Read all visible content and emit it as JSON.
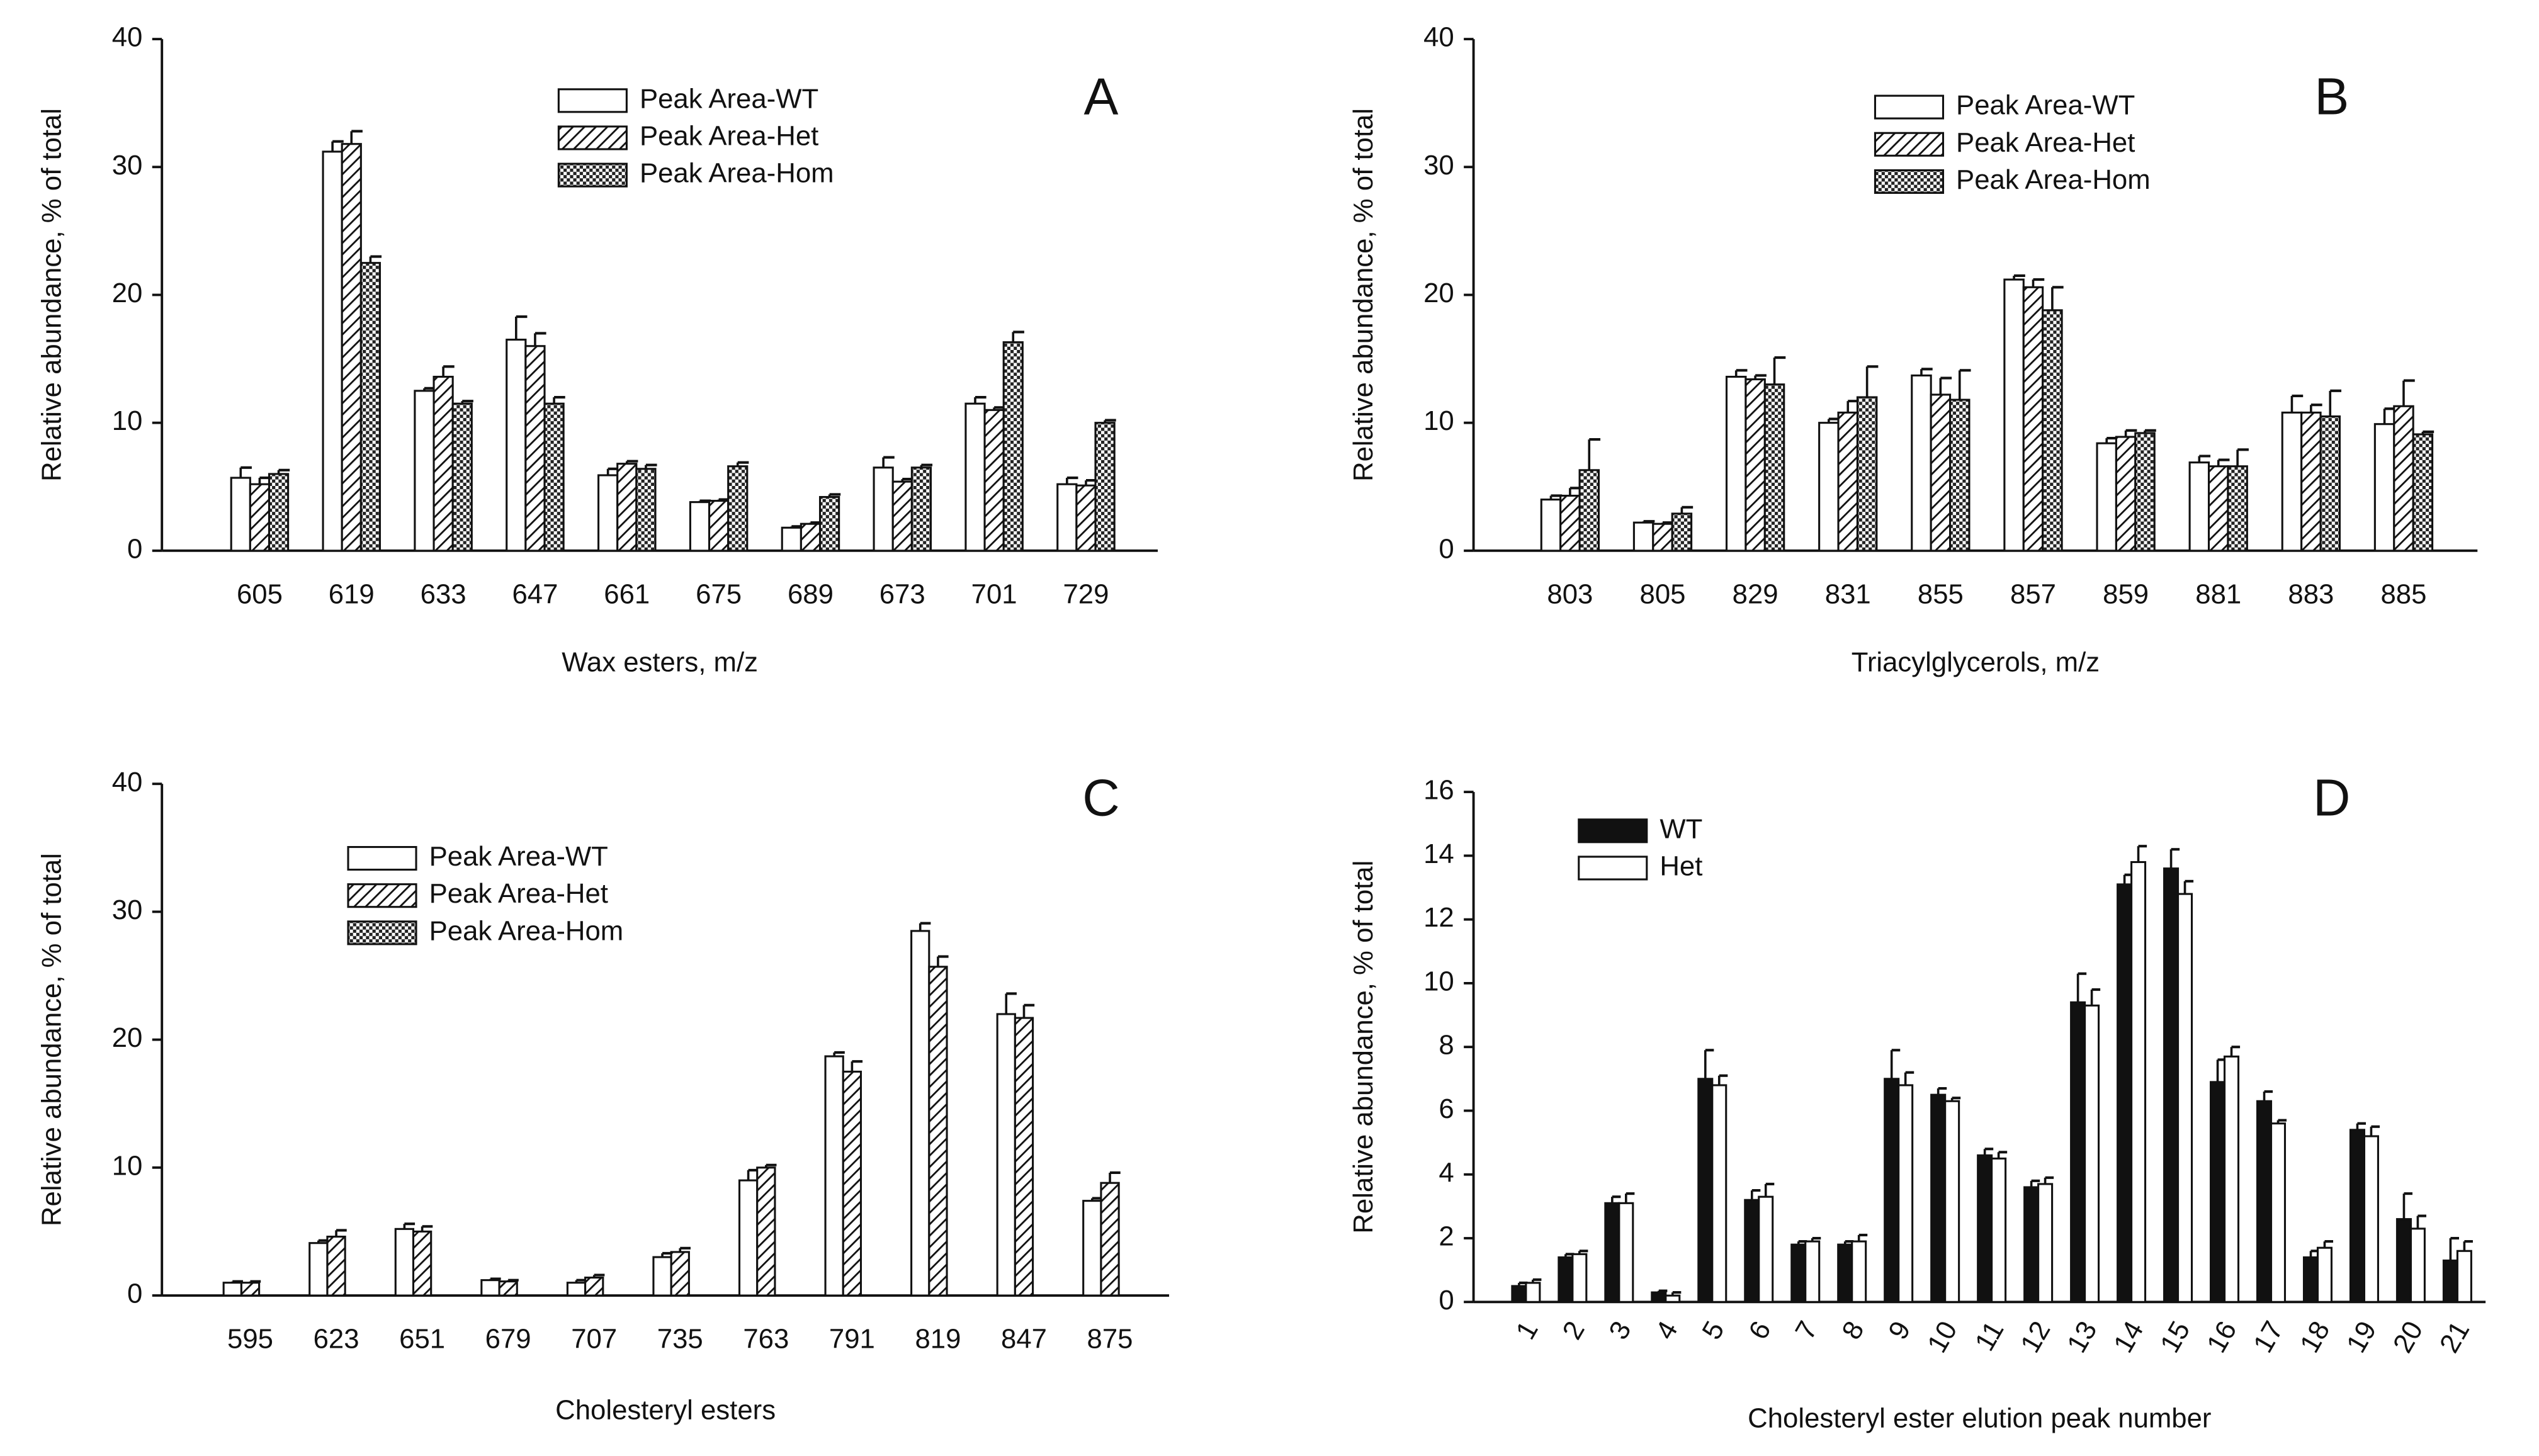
{
  "chart_data": [
    {
      "type": "bar",
      "label": "A",
      "xlabel": "Wax esters, m/z",
      "ylabel": "Relative abundance, % of total",
      "categories": [
        "605",
        "619",
        "633",
        "647",
        "661",
        "675",
        "689",
        "673",
        "701",
        "729"
      ],
      "ylim": [
        0,
        40
      ],
      "yticks": [
        0,
        10,
        20,
        30,
        40
      ],
      "series": [
        {
          "name": "Peak Area-WT",
          "color": "#ffffff",
          "pattern": "none",
          "values": [
            5.7,
            31.2,
            12.5,
            16.5,
            5.9,
            3.8,
            1.8,
            6.5,
            11.5,
            5.2
          ],
          "errors": [
            0.8,
            0.8,
            0.2,
            1.8,
            0.5,
            0.1,
            0.1,
            0.8,
            0.5,
            0.5
          ]
        },
        {
          "name": "Peak Area-Het",
          "color": "#ffffff",
          "pattern": "diagonal",
          "values": [
            5.2,
            31.8,
            13.6,
            16.0,
            6.8,
            3.9,
            2.1,
            5.4,
            11.0,
            5.1
          ],
          "errors": [
            0.5,
            1.0,
            0.8,
            1.0,
            0.2,
            0.1,
            0.1,
            0.2,
            0.2,
            0.4
          ]
        },
        {
          "name": "Peak Area-Hom",
          "color": "#ffffff",
          "pattern": "checker",
          "values": [
            6.0,
            22.5,
            11.5,
            11.5,
            6.4,
            6.6,
            4.2,
            6.5,
            16.3,
            10.0
          ],
          "errors": [
            0.3,
            0.5,
            0.2,
            0.5,
            0.3,
            0.3,
            0.2,
            0.2,
            0.8,
            0.2
          ]
        }
      ]
    },
    {
      "type": "bar",
      "label": "B",
      "xlabel": "Triacylglycerols, m/z",
      "ylabel": "Relative abundance, % of total",
      "categories": [
        "803",
        "805",
        "829",
        "831",
        "855",
        "857",
        "859",
        "881",
        "883",
        "885"
      ],
      "ylim": [
        0,
        40
      ],
      "yticks": [
        0,
        10,
        20,
        30,
        40
      ],
      "series": [
        {
          "name": "Peak Area-WT",
          "color": "#ffffff",
          "pattern": "none",
          "values": [
            4.0,
            2.2,
            13.6,
            10.0,
            13.7,
            21.2,
            8.4,
            6.9,
            10.8,
            9.9
          ],
          "errors": [
            0.3,
            0.1,
            0.5,
            0.3,
            0.5,
            0.3,
            0.4,
            0.5,
            1.3,
            1.2
          ]
        },
        {
          "name": "Peak Area-Het",
          "color": "#ffffff",
          "pattern": "diagonal",
          "values": [
            4.3,
            2.1,
            13.4,
            10.8,
            12.2,
            20.6,
            8.9,
            6.6,
            10.8,
            11.3
          ],
          "errors": [
            0.6,
            0.1,
            0.3,
            0.9,
            1.3,
            0.6,
            0.5,
            0.5,
            0.6,
            2.0
          ]
        },
        {
          "name": "Peak Area-Hom",
          "color": "#ffffff",
          "pattern": "checker",
          "values": [
            6.3,
            2.9,
            13.0,
            12.0,
            11.8,
            18.8,
            9.2,
            6.6,
            10.5,
            9.1
          ],
          "errors": [
            2.4,
            0.5,
            2.1,
            2.4,
            2.3,
            1.8,
            0.2,
            1.3,
            2.0,
            0.2
          ]
        }
      ]
    },
    {
      "type": "bar",
      "label": "C",
      "xlabel": "Cholesteryl esters",
      "ylabel": "Relative abundance, % of total",
      "categories": [
        "595",
        "623",
        "651",
        "679",
        "707",
        "735",
        "763",
        "791",
        "819",
        "847",
        "875"
      ],
      "ylim": [
        0,
        40
      ],
      "yticks": [
        0,
        10,
        20,
        30,
        40
      ],
      "series": [
        {
          "name": "Peak Area-WT",
          "color": "#ffffff",
          "pattern": "none",
          "values": [
            1.0,
            4.1,
            5.2,
            1.2,
            1.0,
            3.0,
            9.0,
            18.7,
            28.5,
            22.0,
            7.4
          ],
          "errors": [
            0.1,
            0.2,
            0.4,
            0.1,
            0.2,
            0.3,
            0.8,
            0.3,
            0.6,
            1.6,
            0.2
          ]
        },
        {
          "name": "Peak Area-Het",
          "color": "#ffffff",
          "pattern": "diagonal",
          "values": [
            1.0,
            4.6,
            5.0,
            1.1,
            1.4,
            3.4,
            10.0,
            17.5,
            25.7,
            21.7,
            8.8
          ],
          "errors": [
            0.1,
            0.5,
            0.4,
            0.1,
            0.2,
            0.3,
            0.2,
            0.8,
            0.8,
            1.0,
            0.8
          ]
        },
        {
          "name": "Peak Area-Hom",
          "color": "#ffffff",
          "pattern": "checker",
          "values": [
            null,
            null,
            null,
            null,
            null,
            null,
            null,
            null,
            null,
            null,
            null
          ],
          "errors": [
            null,
            null,
            null,
            null,
            null,
            null,
            null,
            null,
            null,
            null,
            null
          ]
        }
      ]
    },
    {
      "type": "bar",
      "label": "D",
      "xlabel": "Cholesteryl ester elution peak number",
      "ylabel": "Relative abundance, % of total",
      "categories": [
        "1",
        "2",
        "3",
        "4",
        "5",
        "6",
        "7",
        "8",
        "9",
        "10",
        "11",
        "12",
        "13",
        "14",
        "15",
        "16",
        "17",
        "18",
        "19",
        "20",
        "21"
      ],
      "ylim": [
        0,
        16
      ],
      "yticks": [
        0,
        2,
        4,
        6,
        8,
        10,
        12,
        14,
        16
      ],
      "series": [
        {
          "name": "WT",
          "color": "#111111",
          "pattern": "none",
          "values": [
            0.5,
            1.4,
            3.1,
            0.3,
            7.0,
            3.2,
            1.8,
            1.8,
            7.0,
            6.5,
            4.6,
            3.6,
            9.4,
            13.1,
            13.6,
            6.9,
            6.3,
            1.4,
            5.4,
            2.6,
            1.3
          ],
          "errors": [
            0.1,
            0.1,
            0.2,
            0.05,
            0.9,
            0.3,
            0.1,
            0.1,
            0.9,
            0.2,
            0.2,
            0.2,
            0.9,
            0.3,
            0.6,
            0.7,
            0.3,
            0.2,
            0.2,
            0.8,
            0.7
          ]
        },
        {
          "name": "Het",
          "color": "#ffffff",
          "pattern": "none",
          "values": [
            0.6,
            1.5,
            3.1,
            0.2,
            6.8,
            3.3,
            1.9,
            1.9,
            6.8,
            6.3,
            4.5,
            3.7,
            9.3,
            13.8,
            12.8,
            7.7,
            5.6,
            1.7,
            5.2,
            2.3,
            1.6
          ],
          "errors": [
            0.1,
            0.1,
            0.3,
            0.1,
            0.3,
            0.4,
            0.1,
            0.2,
            0.4,
            0.1,
            0.2,
            0.2,
            0.5,
            0.5,
            0.4,
            0.3,
            0.1,
            0.2,
            0.3,
            0.4,
            0.3
          ]
        }
      ]
    }
  ]
}
